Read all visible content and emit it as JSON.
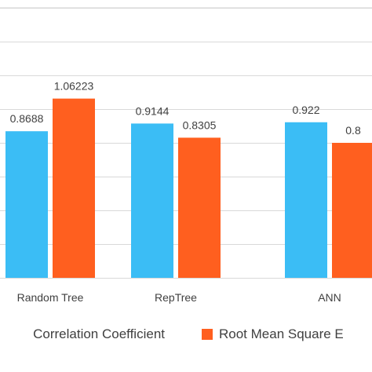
{
  "chart_data": {
    "type": "bar",
    "categories": [
      "Random Tree",
      "RepTree",
      "ANN"
    ],
    "series": [
      {
        "name": "Correlation Coefficient",
        "values": [
          0.8688,
          0.9144,
          0.922
        ],
        "labels": [
          "0.8688",
          "0.9144",
          "0.922"
        ],
        "color": "#3BBDF5"
      },
      {
        "name": "Root Mean Square Error",
        "values": [
          1.06223,
          0.8305,
          0.8
        ],
        "labels": [
          "1.06223",
          "0.8305",
          "0.8"
        ],
        "color": "#FF5F1F"
      }
    ],
    "ylim": [
      0,
      1.6
    ],
    "grid": true,
    "legend": "bottom",
    "legend_labels": [
      "Correlation Coefficient",
      "Root Mean Square E"
    ],
    "title": "",
    "xlabel": "",
    "ylabel": ""
  }
}
